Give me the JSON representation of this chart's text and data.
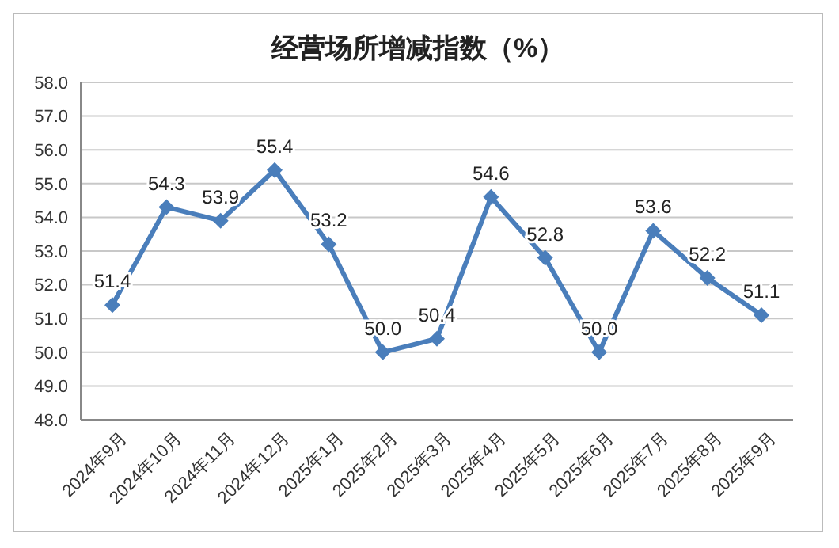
{
  "chart_data": {
    "type": "line",
    "title": "经营场所增减指数（%）",
    "categories": [
      "2024年9月",
      "2024年10月",
      "2024年11月",
      "2024年12月",
      "2025年1月",
      "2025年2月",
      "2025年3月",
      "2025年4月",
      "2025年5月",
      "2025年6月",
      "2025年7月",
      "2025年8月",
      "2025年9月"
    ],
    "series": [
      {
        "color": "#4a7ebb",
        "values": [
          51.4,
          54.3,
          53.9,
          55.4,
          53.2,
          50.0,
          50.4,
          54.6,
          52.8,
          50.0,
          53.6,
          52.2,
          51.1
        ],
        "value_labels": [
          "51.4",
          "54.3",
          "53.9",
          "55.4",
          "53.2",
          "50.0",
          "50.4",
          "54.6",
          "52.8",
          "50.0",
          "53.6",
          "52.2",
          "51.1"
        ]
      }
    ],
    "ylim": [
      48,
      58
    ],
    "yticks": [
      {
        "value": 48,
        "label": "48.0"
      },
      {
        "value": 49,
        "label": "49.0"
      },
      {
        "value": 50,
        "label": "50.0"
      },
      {
        "value": 51,
        "label": "51.0"
      },
      {
        "value": 52,
        "label": "52.0"
      },
      {
        "value": 53,
        "label": "53.0"
      },
      {
        "value": 54,
        "label": "54.0"
      },
      {
        "value": 55,
        "label": "55.0"
      },
      {
        "value": 56,
        "label": "56.0"
      },
      {
        "value": 57,
        "label": "57.0"
      },
      {
        "value": 58,
        "label": "58.0"
      }
    ],
    "grid": "y",
    "legend": false,
    "marker": "diamond",
    "line_style": "solid"
  }
}
